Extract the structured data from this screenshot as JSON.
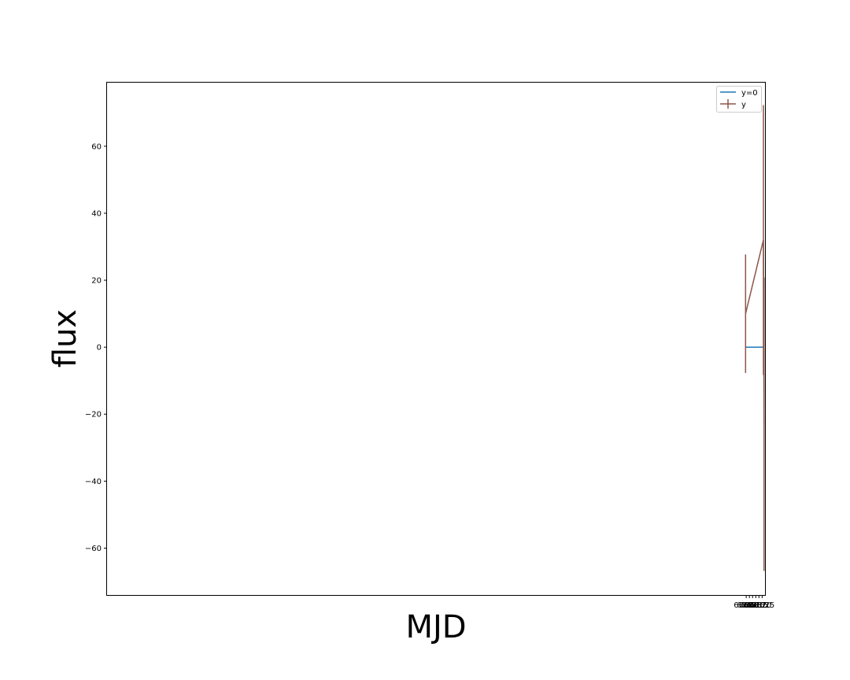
{
  "chart_data": {
    "type": "line",
    "xlabel": "MJD",
    "ylabel": "flux",
    "xlim": [
      59596.5,
      60629.5
    ],
    "ylim": [
      -74,
      79
    ],
    "x_ticks": [
      60600,
      60605,
      60610,
      60615,
      60620,
      60625
    ],
    "y_ticks": [
      -60,
      -40,
      -20,
      0,
      20,
      40,
      60
    ],
    "grid": false,
    "legend": {
      "placement": "top-right"
    },
    "series": [
      {
        "name": "y=0",
        "kind": "line",
        "color": "#1f77b4",
        "x": [
          60598,
          60628
        ],
        "y": [
          0,
          0
        ]
      },
      {
        "name": "y",
        "kind": "errorbar",
        "color": "#8c564b",
        "x": [
          60599,
          60627,
          60628
        ],
        "y": [
          10,
          32,
          -23
        ],
        "yerr": [
          17.7,
          40.3,
          43.8
        ]
      }
    ]
  }
}
